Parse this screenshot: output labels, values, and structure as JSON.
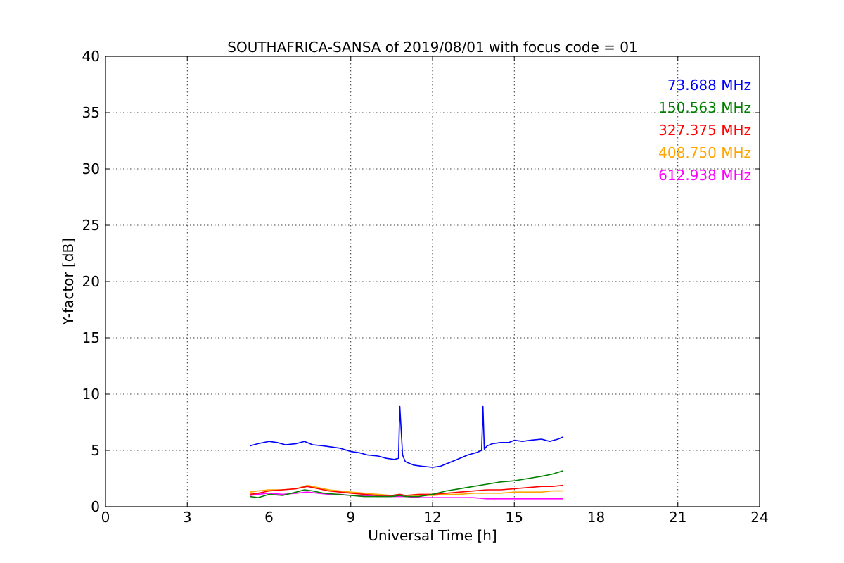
{
  "chart_data": {
    "type": "line",
    "title": "SOUTHAFRICA-SANSA of 2019/08/01 with focus code = 01",
    "xlabel": "Universal Time [h]",
    "ylabel": "Y-factor [dB]",
    "xlim": [
      0,
      24
    ],
    "ylim": [
      0,
      40
    ],
    "xticks": [
      0,
      3,
      6,
      9,
      12,
      15,
      18,
      21,
      24
    ],
    "yticks": [
      0,
      5,
      10,
      15,
      20,
      25,
      30,
      35,
      40
    ],
    "grid": true,
    "legend_placement": "top-right",
    "series": [
      {
        "name": "73.688 MHz",
        "color": "#0000ff",
        "x": [
          5.3,
          5.6,
          6.0,
          6.3,
          6.6,
          7.0,
          7.3,
          7.6,
          8.0,
          8.3,
          8.6,
          9.0,
          9.3,
          9.6,
          10.0,
          10.3,
          10.6,
          10.75,
          10.8,
          10.9,
          11.0,
          11.3,
          11.6,
          12.0,
          12.3,
          12.6,
          13.0,
          13.3,
          13.6,
          13.8,
          13.85,
          13.9,
          14.0,
          14.2,
          14.5,
          14.8,
          15.0,
          15.3,
          15.6,
          16.0,
          16.3,
          16.6,
          16.8
        ],
        "y": [
          5.4,
          5.6,
          5.8,
          5.7,
          5.5,
          5.6,
          5.8,
          5.5,
          5.4,
          5.3,
          5.2,
          4.9,
          4.8,
          4.6,
          4.5,
          4.3,
          4.2,
          4.3,
          8.9,
          4.6,
          4.0,
          3.7,
          3.6,
          3.5,
          3.6,
          3.9,
          4.3,
          4.6,
          4.8,
          5.0,
          8.9,
          5.1,
          5.4,
          5.6,
          5.7,
          5.7,
          5.9,
          5.8,
          5.9,
          6.0,
          5.8,
          6.0,
          6.2
        ]
      },
      {
        "name": "150.563 MHz",
        "color": "#008000",
        "x": [
          5.3,
          5.6,
          6.0,
          6.5,
          7.0,
          7.3,
          7.6,
          8.0,
          8.5,
          9.0,
          9.5,
          10.0,
          10.5,
          10.8,
          11.0,
          11.5,
          12.0,
          12.5,
          13.0,
          13.5,
          14.0,
          14.5,
          15.0,
          15.5,
          16.0,
          16.4,
          16.8
        ],
        "y": [
          0.9,
          0.8,
          1.1,
          1.0,
          1.3,
          1.5,
          1.4,
          1.2,
          1.1,
          1.0,
          0.9,
          0.9,
          0.9,
          1.0,
          0.9,
          0.9,
          1.1,
          1.4,
          1.6,
          1.8,
          2.0,
          2.2,
          2.3,
          2.5,
          2.7,
          2.9,
          3.2
        ]
      },
      {
        "name": "327.375 MHz",
        "color": "#ff0000",
        "x": [
          5.3,
          5.6,
          6.0,
          6.5,
          7.0,
          7.4,
          7.8,
          8.2,
          8.6,
          9.0,
          9.5,
          10.0,
          10.5,
          10.8,
          11.0,
          11.5,
          12.0,
          12.5,
          13.0,
          13.5,
          14.0,
          14.5,
          15.0,
          15.5,
          16.0,
          16.4,
          16.8
        ],
        "y": [
          1.1,
          1.2,
          1.4,
          1.5,
          1.6,
          1.8,
          1.6,
          1.4,
          1.3,
          1.2,
          1.1,
          1.0,
          1.0,
          1.1,
          1.0,
          1.1,
          1.1,
          1.2,
          1.3,
          1.4,
          1.5,
          1.5,
          1.6,
          1.7,
          1.8,
          1.8,
          1.9
        ]
      },
      {
        "name": "408.750 MHz",
        "color": "#ffa500",
        "x": [
          5.3,
          5.6,
          6.0,
          6.5,
          7.0,
          7.4,
          7.8,
          8.2,
          8.6,
          9.0,
          9.5,
          10.0,
          10.5,
          10.8,
          11.0,
          11.5,
          12.0,
          12.5,
          13.0,
          13.5,
          14.0,
          14.5,
          15.0,
          15.5,
          16.0,
          16.4,
          16.8
        ],
        "y": [
          1.3,
          1.4,
          1.5,
          1.5,
          1.6,
          1.9,
          1.7,
          1.5,
          1.4,
          1.3,
          1.2,
          1.1,
          1.0,
          1.1,
          1.0,
          1.0,
          1.0,
          1.1,
          1.1,
          1.2,
          1.2,
          1.2,
          1.3,
          1.3,
          1.3,
          1.4,
          1.4
        ]
      },
      {
        "name": "612.938 MHz",
        "color": "#ff00ff",
        "x": [
          5.3,
          5.6,
          6.0,
          6.5,
          7.0,
          7.4,
          7.8,
          8.2,
          8.6,
          9.0,
          9.5,
          10.0,
          10.5,
          11.0,
          11.5,
          12.0,
          12.5,
          13.0,
          13.5,
          14.0,
          14.5,
          15.0,
          15.5,
          16.0,
          16.4,
          16.8
        ],
        "y": [
          1.0,
          1.1,
          1.2,
          1.1,
          1.2,
          1.3,
          1.2,
          1.1,
          1.1,
          1.0,
          1.0,
          0.9,
          0.9,
          0.9,
          0.8,
          0.8,
          0.8,
          0.8,
          0.8,
          0.7,
          0.7,
          0.7,
          0.7,
          0.7,
          0.7,
          0.7
        ]
      }
    ]
  }
}
